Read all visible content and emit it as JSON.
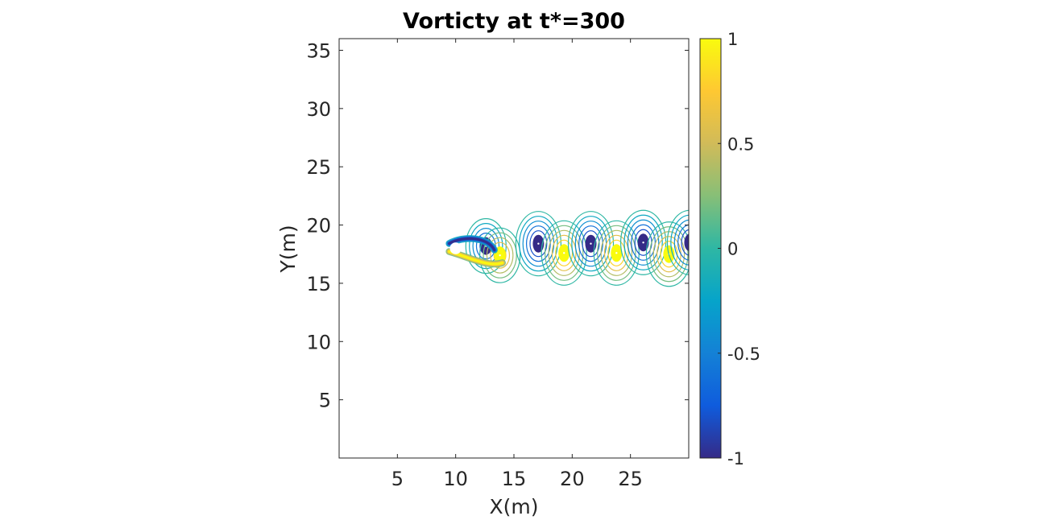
{
  "chart_data": {
    "type": "contour",
    "title": "Vorticty at t*=300",
    "xlabel": "X(m)",
    "ylabel": "Y(m)",
    "xlim": [
      0,
      30
    ],
    "ylim": [
      0,
      36
    ],
    "xticks": [
      "5",
      "10",
      "15",
      "20",
      "25"
    ],
    "yticks": [
      "5",
      "10",
      "15",
      "20",
      "25",
      "30",
      "35"
    ],
    "grid": false,
    "field": {
      "cylinder_center": [
        10,
        18
      ],
      "cylinder_radius": 0.5,
      "vortices": [
        {
          "x": 12.6,
          "y": 18.2,
          "strength": -1.0
        },
        {
          "x": 13.8,
          "y": 17.4,
          "strength": 1.0
        },
        {
          "x": 17.1,
          "y": 18.4,
          "strength": -1.0
        },
        {
          "x": 19.3,
          "y": 17.6,
          "strength": 1.0
        },
        {
          "x": 21.6,
          "y": 18.4,
          "strength": -1.0
        },
        {
          "x": 23.8,
          "y": 17.6,
          "strength": 1.0
        },
        {
          "x": 26.1,
          "y": 18.5,
          "strength": -1.0
        },
        {
          "x": 28.3,
          "y": 17.5,
          "strength": 1.0
        },
        {
          "x": 30.1,
          "y": 18.5,
          "strength": -1.0
        }
      ],
      "contour_levels": [
        -1,
        -0.8,
        -0.6,
        -0.4,
        -0.2,
        0,
        0.2,
        0.4,
        0.6,
        0.8,
        1
      ]
    },
    "colorbar": {
      "colormap": "parula",
      "limits": [
        -1,
        1
      ],
      "ticks": [
        "1",
        "0.5",
        "0",
        "-0.5",
        "-1"
      ],
      "tick_values": [
        1,
        0.5,
        0,
        -0.5,
        -1
      ],
      "colors": [
        "#352a87",
        "#0f5cdd",
        "#1481d6",
        "#06a4ca",
        "#2eb7a4",
        "#87bf77",
        "#d1bb59",
        "#fec832",
        "#f9fb0e"
      ]
    }
  }
}
